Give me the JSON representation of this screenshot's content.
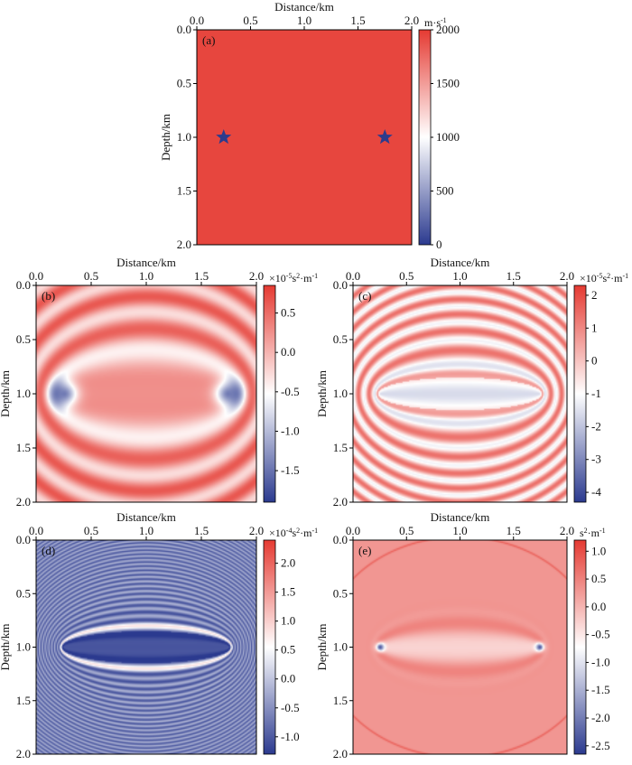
{
  "figure": {
    "panels": [
      {
        "id": "a",
        "label": "(a)",
        "xlabel": "Distance/km",
        "ylabel": "Depth/km",
        "colorbar": {
          "unit_prefix": "",
          "unit": "m·s",
          "unit_sup": "-1",
          "ticks": [
            "2000",
            "1500",
            "1000",
            "500",
            "0"
          ]
        }
      },
      {
        "id": "b",
        "label": "(b)",
        "xlabel": "Distance/km",
        "ylabel": "Depth/km",
        "colorbar": {
          "unit_prefix": "×10",
          "unit_exp": "-5",
          "unit": "s",
          "unit_sup2": "2",
          "unit_mid": "·m",
          "unit_sup": "-1",
          "ticks": [
            "0.5",
            "0.0",
            "-0.5",
            "-1.0",
            "-1.5"
          ]
        }
      },
      {
        "id": "c",
        "label": "(c)",
        "xlabel": "Distance/km",
        "ylabel": "Depth/km",
        "colorbar": {
          "unit_prefix": "×10",
          "unit_exp": "-5",
          "unit": "s",
          "unit_sup2": "2",
          "unit_mid": "·m",
          "unit_sup": "-1",
          "ticks": [
            "2",
            "1",
            "0",
            "-1",
            "-2",
            "-3",
            "-4"
          ]
        }
      },
      {
        "id": "d",
        "label": "(d)",
        "xlabel": "Distance/km",
        "ylabel": "Depth/km",
        "colorbar": {
          "unit_prefix": "×10",
          "unit_exp": "-4",
          "unit": "s",
          "unit_sup2": "2",
          "unit_mid": "·m",
          "unit_sup": "-1",
          "ticks": [
            "2.0",
            "1.5",
            "1.0",
            "0.5",
            "0.0",
            "-0.5",
            "-1.0"
          ]
        }
      },
      {
        "id": "e",
        "label": "(e)",
        "xlabel": "Distance/km",
        "ylabel": "Depth/km",
        "colorbar": {
          "unit_prefix": "",
          "unit": "s",
          "unit_sup2": "2",
          "unit_mid": "·m",
          "unit_sup": "-1",
          "ticks": [
            "1.0",
            "0.5",
            "0.0",
            "-0.5",
            "-1.0",
            "-1.5",
            "-2.0",
            "-2.5"
          ]
        }
      }
    ]
  },
  "chart_data": [
    {
      "type": "heatmap",
      "panel": "(a)",
      "xlabel": "Distance/km",
      "ylabel": "Depth/km",
      "xlim": [
        0,
        2.0
      ],
      "ylim": [
        2.0,
        0
      ],
      "x_ticks": [
        "0.0",
        "0.5",
        "1.0",
        "1.5",
        "2.0"
      ],
      "y_ticks": [
        "0.0",
        "0.5",
        "1.0",
        "1.5",
        "2.0"
      ],
      "field": "uniform velocity model",
      "value": 2000,
      "colorbar": {
        "range": [
          0,
          2000
        ],
        "ticks": [
          0,
          500,
          1000,
          1500,
          2000
        ],
        "unit": "m·s-1"
      },
      "markers": [
        {
          "shape": "star",
          "x": 0.25,
          "y": 1.0
        },
        {
          "shape": "star",
          "x": 1.75,
          "y": 1.0
        }
      ],
      "colormap": {
        "low": "#2b3a8f",
        "mid": "#ffffff",
        "high": "#e53a32"
      }
    },
    {
      "type": "heatmap",
      "panel": "(b)",
      "xlabel": "Distance/km",
      "ylabel": "Depth/km",
      "xlim": [
        0,
        2.0
      ],
      "ylim": [
        2.0,
        0
      ],
      "x_ticks": [
        "0.0",
        "0.5",
        "1.0",
        "1.5",
        "2.0"
      ],
      "y_ticks": [
        "0.0",
        "0.5",
        "1.0",
        "1.5",
        "2.0"
      ],
      "colorbar": {
        "range": [
          -1.9,
          0.85
        ],
        "ticks": [
          -1.5,
          -1.0,
          -0.5,
          0.0,
          0.5
        ],
        "unit": "×10-5s2·m-1"
      },
      "pattern": {
        "focus_left": [
          0.25,
          1.0
        ],
        "focus_right": [
          1.75,
          1.0
        ],
        "fringe_period_km": 0.42,
        "background": 0.2,
        "amplitude": 0.45
      }
    },
    {
      "type": "heatmap",
      "panel": "(c)",
      "xlabel": "Distance/km",
      "ylabel": "Depth/km",
      "xlim": [
        0,
        2.0
      ],
      "ylim": [
        2.0,
        0
      ],
      "x_ticks": [
        "0.0",
        "0.5",
        "1.0",
        "1.5",
        "2.0"
      ],
      "y_ticks": [
        "0.0",
        "0.5",
        "1.0",
        "1.5",
        "2.0"
      ],
      "colorbar": {
        "range": [
          -4.3,
          2.3
        ],
        "ticks": [
          -4,
          -3,
          -2,
          -1,
          0,
          1,
          2
        ],
        "unit": "×10-5s2·m-1"
      },
      "pattern": {
        "focus_left": [
          0.25,
          1.0
        ],
        "focus_right": [
          1.75,
          1.0
        ],
        "fringe_period_km": 0.2,
        "background": 0.1,
        "amplitude": 1.3
      }
    },
    {
      "type": "heatmap",
      "panel": "(d)",
      "xlabel": "Distance/km",
      "ylabel": "Depth/km",
      "xlim": [
        0,
        2.0
      ],
      "ylim": [
        2.0,
        0
      ],
      "x_ticks": [
        "0.0",
        "0.5",
        "1.0",
        "1.5",
        "2.0"
      ],
      "y_ticks": [
        "0.0",
        "0.5",
        "1.0",
        "1.5",
        "2.0"
      ],
      "colorbar": {
        "range": [
          -1.3,
          2.4
        ],
        "ticks": [
          -1.0,
          -0.5,
          0.0,
          0.5,
          1.0,
          1.5,
          2.0
        ],
        "unit": "×10-4s2·m-1"
      },
      "pattern": {
        "focus_left": [
          0.25,
          1.0
        ],
        "focus_right": [
          1.75,
          1.0
        ],
        "fringe_period_km": 0.055,
        "background": -0.6,
        "amplitude": 0.45
      }
    },
    {
      "type": "heatmap",
      "panel": "(e)",
      "xlabel": "Distance/km",
      "ylabel": "Depth/km",
      "xlim": [
        0,
        2.0
      ],
      "ylim": [
        2.0,
        0
      ],
      "x_ticks": [
        "0.0",
        "0.5",
        "1.0",
        "1.5",
        "2.0"
      ],
      "y_ticks": [
        "0.0",
        "0.5",
        "1.0",
        "1.5",
        "2.0"
      ],
      "colorbar": {
        "range": [
          -2.65,
          1.2
        ],
        "ticks": [
          -2.5,
          -2.0,
          -1.5,
          -1.0,
          -0.5,
          0.0,
          0.5,
          1.0
        ],
        "unit": "s2·m-1"
      },
      "pattern": {
        "focus_left": [
          0.25,
          1.0
        ],
        "focus_right": [
          1.75,
          1.0
        ],
        "fringe_period_km": 0,
        "background": 0.3,
        "amplitude": 0.4
      }
    }
  ]
}
